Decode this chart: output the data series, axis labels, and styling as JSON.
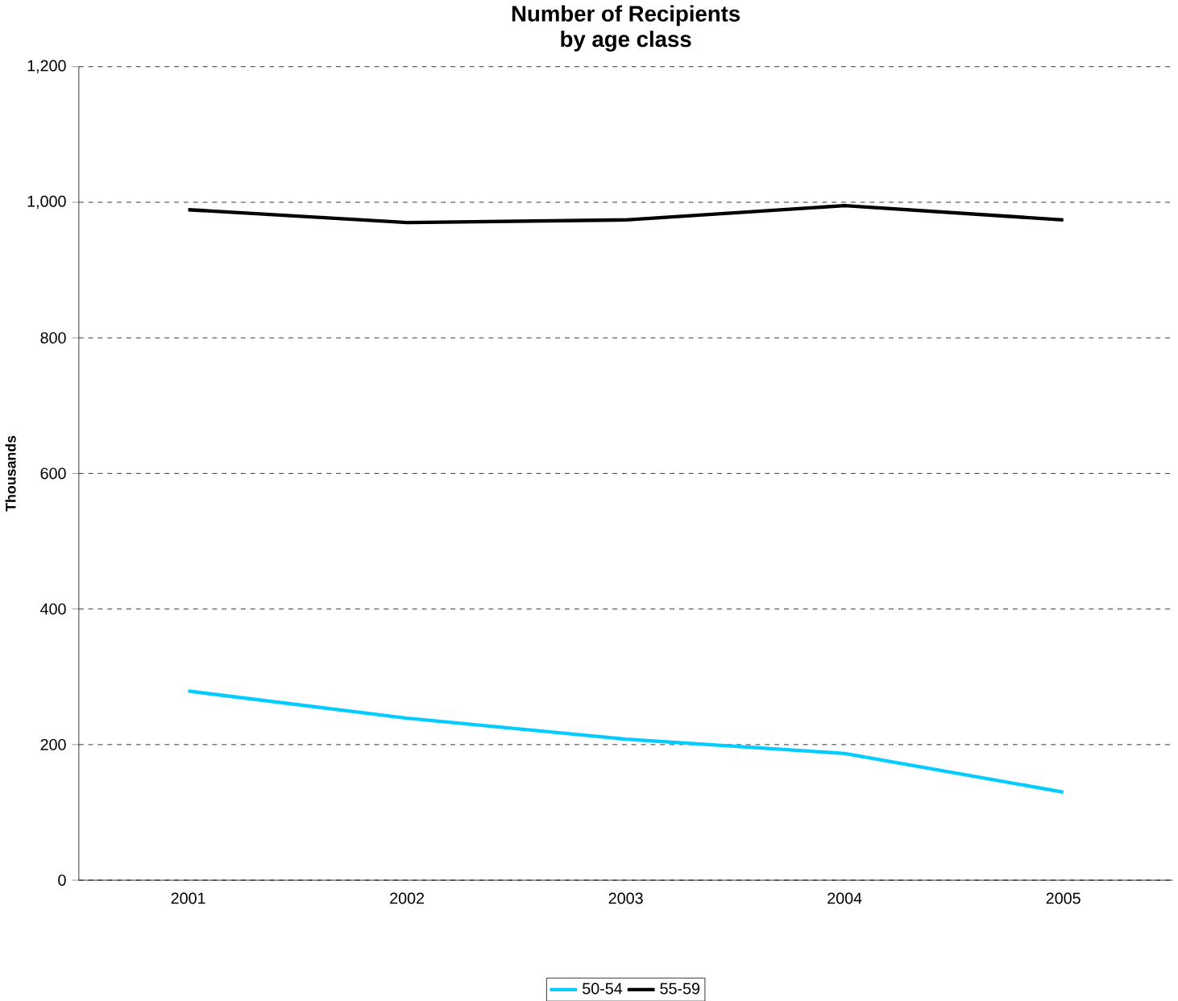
{
  "chart_data": {
    "type": "line",
    "title": "Number of Recipients\nby age class",
    "ylabel": "Thousands",
    "categories": [
      "2001",
      "2002",
      "2003",
      "2004",
      "2005"
    ],
    "series": [
      {
        "name": "50-54",
        "color": "#00ccff",
        "values": [
          279,
          239,
          208,
          187,
          130
        ]
      },
      {
        "name": "55-59",
        "color": "#000000",
        "values": [
          989,
          970,
          974,
          995,
          974
        ]
      }
    ],
    "ylim": [
      0,
      1200
    ],
    "yticks": [
      0,
      {
        "value": 200,
        "label": "200"
      },
      400,
      600,
      800,
      {
        "value": 1000,
        "label": "1,000"
      },
      {
        "value": 1200,
        "label": "1,200"
      }
    ],
    "grid": "y",
    "legend": "bottom",
    "marker": "none",
    "line_style": "solid"
  }
}
